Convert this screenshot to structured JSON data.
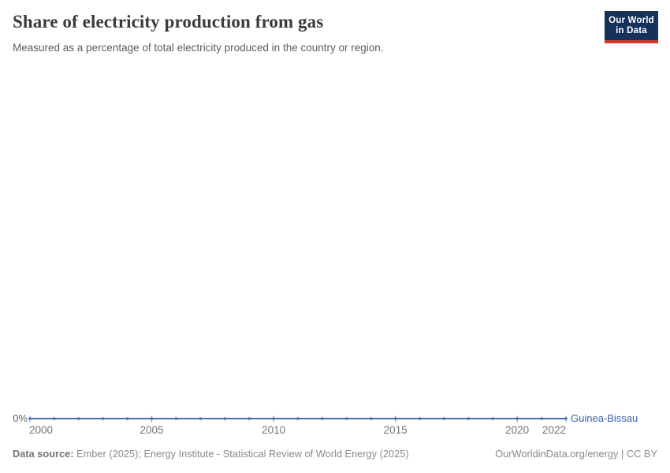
{
  "header": {
    "title": "Share of electricity production from gas",
    "subtitle": "Measured as a percentage of total electricity produced in the country or region.",
    "logo": {
      "line1": "Our World",
      "line2": "in Data"
    }
  },
  "chart_data": {
    "type": "line",
    "title": "Share of electricity production from gas",
    "subtitle": "Measured as a percentage of total electricity produced in the country or region.",
    "xlabel": "",
    "ylabel": "",
    "y_unit": "%",
    "y_zero_label": "0%",
    "ylim": [
      0,
      0
    ],
    "grid": false,
    "legend_position": "end-of-line",
    "x": [
      2000,
      2001,
      2002,
      2003,
      2004,
      2005,
      2006,
      2007,
      2008,
      2009,
      2010,
      2011,
      2012,
      2013,
      2014,
      2015,
      2016,
      2017,
      2018,
      2019,
      2020,
      2021,
      2022
    ],
    "x_ticks": [
      "2000",
      "2005",
      "2010",
      "2015",
      "2020",
      "2022"
    ],
    "series": [
      {
        "name": "Guinea-Bissau",
        "values": [
          0,
          0,
          0,
          0,
          0,
          0,
          0,
          0,
          0,
          0,
          0,
          0,
          0,
          0,
          0,
          0,
          0,
          0,
          0,
          0,
          0,
          0,
          0
        ]
      }
    ]
  },
  "footer": {
    "data_source_label": "Data source:",
    "data_source_text": "Ember (2025); Energy Institute - Statistical Review of World Energy (2025)",
    "attribution": "OurWorldinData.org/energy | CC BY"
  },
  "colors": {
    "line": "#4c6fae",
    "marker": "#4c6fae",
    "tick": "#8b9cbd",
    "entity_label": "#3c64a9",
    "logo_navy": "#16315a",
    "logo_red": "#d7382e"
  }
}
